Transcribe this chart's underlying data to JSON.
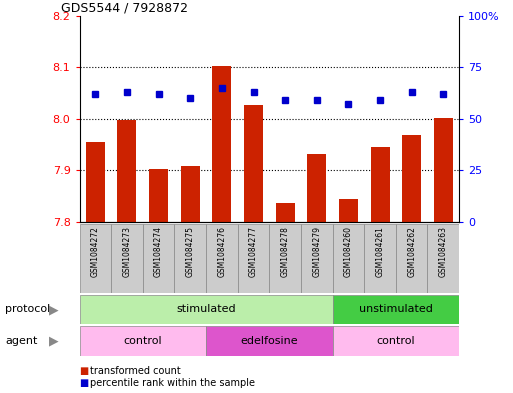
{
  "title": "GDS5544 / 7928872",
  "samples": [
    "GSM1084272",
    "GSM1084273",
    "GSM1084274",
    "GSM1084275",
    "GSM1084276",
    "GSM1084277",
    "GSM1084278",
    "GSM1084279",
    "GSM1084260",
    "GSM1084261",
    "GSM1084262",
    "GSM1084263"
  ],
  "transformed_count": [
    7.955,
    7.998,
    7.903,
    7.908,
    8.102,
    8.027,
    7.836,
    7.932,
    7.845,
    7.945,
    7.968,
    8.002
  ],
  "percentile_rank": [
    62,
    63,
    62,
    60,
    65,
    63,
    59,
    59,
    57,
    59,
    63,
    62
  ],
  "ylim_left": [
    7.8,
    8.2
  ],
  "ylim_right": [
    0,
    100
  ],
  "yticks_left": [
    7.8,
    7.9,
    8.0,
    8.1,
    8.2
  ],
  "yticks_right": [
    0,
    25,
    50,
    75,
    100
  ],
  "ytick_labels_right": [
    "0",
    "25",
    "50",
    "75",
    "100%"
  ],
  "bar_color": "#CC2200",
  "dot_color": "#0000CC",
  "protocol_groups": [
    {
      "label": "stimulated",
      "start": 0,
      "end": 8,
      "color": "#BBEEAA"
    },
    {
      "label": "unstimulated",
      "start": 8,
      "end": 12,
      "color": "#44CC44"
    }
  ],
  "agent_groups": [
    {
      "label": "control",
      "start": 0,
      "end": 4,
      "color": "#FFBBEE"
    },
    {
      "label": "edelfosine",
      "start": 4,
      "end": 8,
      "color": "#DD55CC"
    },
    {
      "label": "control",
      "start": 8,
      "end": 12,
      "color": "#FFBBEE"
    }
  ],
  "protocol_label": "protocol",
  "agent_label": "agent",
  "legend_bar_label": "transformed count",
  "legend_dot_label": "percentile rank within the sample",
  "bg_color": "#FFFFFF",
  "dotted_lines": [
    7.9,
    8.0,
    8.1
  ],
  "bar_width": 0.6
}
